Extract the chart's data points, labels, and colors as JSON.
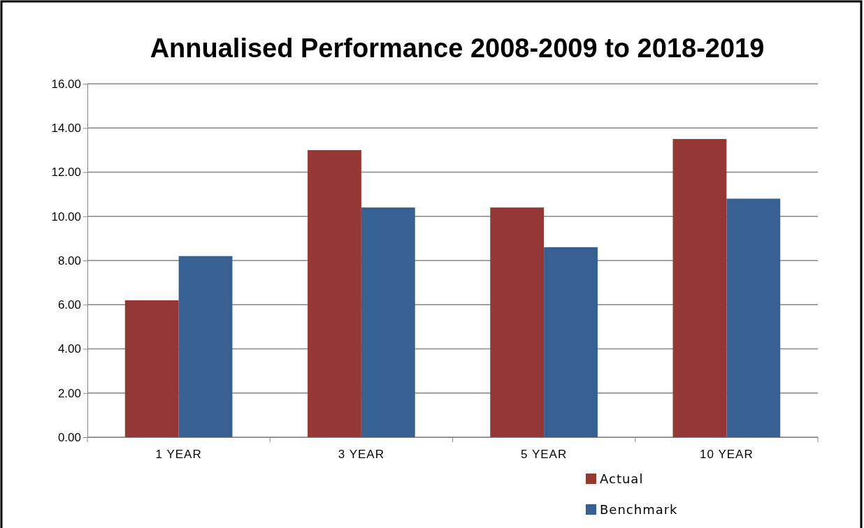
{
  "chart_data": {
    "type": "bar",
    "title": "Annualised Performance 2008-2009 to 2018-2019",
    "categories": [
      "1 YEAR",
      "3 YEAR",
      "5 YEAR",
      "10 YEAR"
    ],
    "series": [
      {
        "name": "Actual",
        "color": "#953735",
        "values": [
          6.2,
          13.0,
          10.4,
          13.5
        ]
      },
      {
        "name": "Benchmark",
        "color": "#376092",
        "values": [
          8.2,
          10.4,
          8.6,
          10.8
        ]
      }
    ],
    "ylim": [
      0,
      16
    ],
    "yticks": [
      {
        "value": 0,
        "label": "0.00"
      },
      {
        "value": 2,
        "label": "2.00"
      },
      {
        "value": 4,
        "label": "4.00"
      },
      {
        "value": 6,
        "label": "6.00"
      },
      {
        "value": 8,
        "label": "8.00"
      },
      {
        "value": 10,
        "label": "10.00"
      },
      {
        "value": 12,
        "label": "12.00"
      },
      {
        "value": 14,
        "label": "14.00"
      },
      {
        "value": 16,
        "label": "16.00"
      }
    ],
    "grid": "y",
    "legend": "bottom right"
  }
}
